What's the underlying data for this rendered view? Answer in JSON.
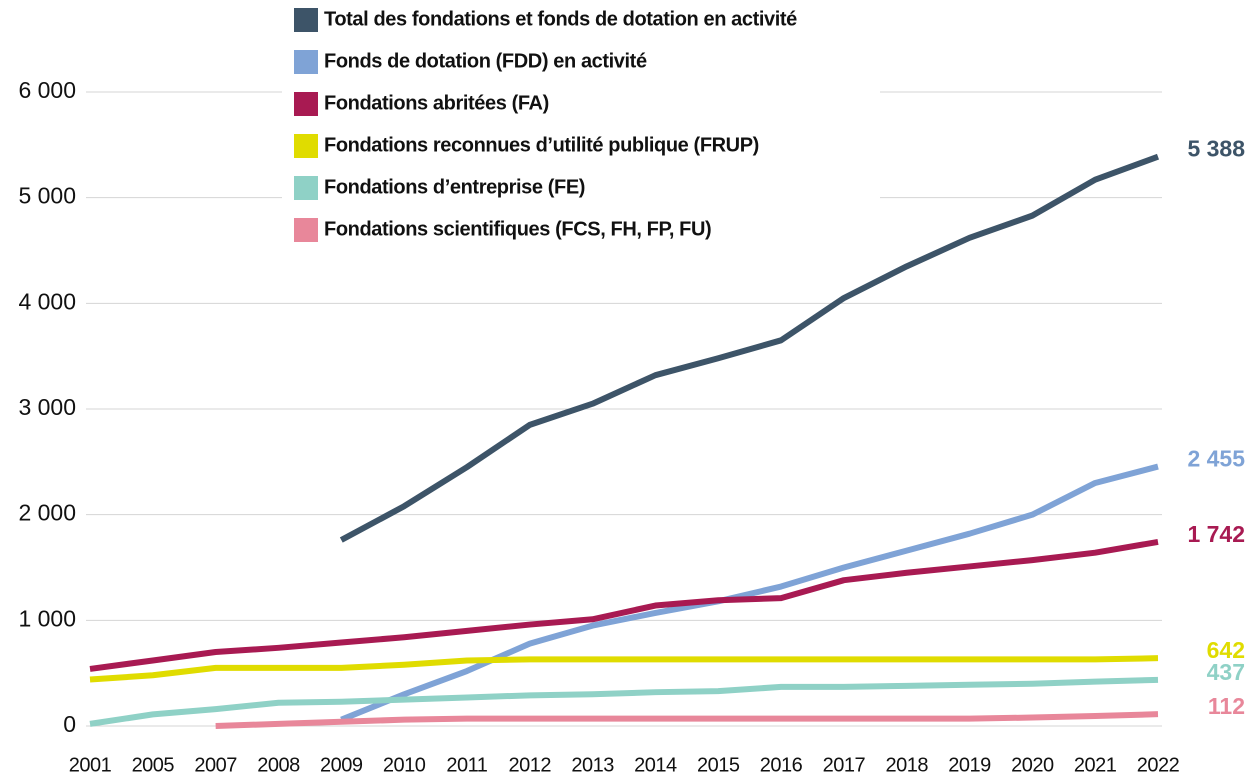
{
  "chart_data": {
    "type": "line",
    "categories": [
      "2001",
      "2005",
      "2007",
      "2008",
      "2009",
      "2010",
      "2011",
      "2012",
      "2013",
      "2014",
      "2015",
      "2016",
      "2017",
      "2018",
      "2019",
      "2020",
      "2021",
      "2022"
    ],
    "ylim": [
      0,
      6000
    ],
    "yticks": [
      0,
      {
        "value": 1000,
        "label": "1 000"
      },
      {
        "value": 2000,
        "label": "2 000"
      },
      {
        "value": 3000,
        "label": "3 000"
      },
      {
        "value": 4000,
        "label": "4 000"
      },
      {
        "value": 5000,
        "label": "5 000"
      },
      {
        "value": 6000,
        "label": "6 000"
      }
    ],
    "grid": true,
    "legend": "upper center",
    "series": [
      {
        "name": "Total des fondations et fonds de dotation en activité",
        "color": "#3d5468",
        "values": [
          null,
          null,
          null,
          null,
          1760,
          2080,
          2450,
          2850,
          3050,
          3320,
          3480,
          3650,
          4050,
          4350,
          4620,
          4830,
          5170,
          5388
        ],
        "value_labels": [
          null,
          null,
          null,
          null,
          null,
          null,
          null,
          null,
          null,
          null,
          null,
          null,
          null,
          null,
          null,
          null,
          null,
          "5 388"
        ]
      },
      {
        "name": "Fonds de dotation (FDD) en activité",
        "color": "#7fa3d6",
        "values": [
          null,
          null,
          null,
          null,
          60,
          300,
          520,
          780,
          950,
          1070,
          1180,
          1320,
          1500,
          1660,
          1820,
          2000,
          2300,
          2455
        ],
        "value_labels": [
          null,
          null,
          null,
          null,
          null,
          null,
          null,
          null,
          null,
          null,
          null,
          null,
          null,
          null,
          null,
          null,
          null,
          "2 455"
        ]
      },
      {
        "name": "Fondations abritées (FA)",
        "color": "#a81a52",
        "values": [
          540,
          620,
          700,
          740,
          790,
          840,
          900,
          960,
          1010,
          1140,
          1190,
          1210,
          1380,
          1450,
          1510,
          1570,
          1640,
          1742
        ],
        "value_labels": [
          null,
          null,
          null,
          null,
          null,
          null,
          null,
          null,
          null,
          null,
          null,
          null,
          null,
          null,
          null,
          null,
          null,
          "1 742"
        ]
      },
      {
        "name": "Fondations reconnues d’utilité publique (FRUP)",
        "color": "#e0dc00",
        "values": [
          440,
          480,
          550,
          550,
          550,
          580,
          620,
          630,
          630,
          630,
          630,
          630,
          630,
          630,
          630,
          630,
          630,
          642
        ]
      },
      {
        "name": "Fondations d’entreprise (FE)",
        "color": "#8fd1c6",
        "values": [
          20,
          110,
          160,
          220,
          230,
          250,
          270,
          290,
          300,
          320,
          330,
          370,
          370,
          380,
          390,
          400,
          420,
          437
        ]
      },
      {
        "name": "Fondations scientifiques (FCS, FH, FP, FU)",
        "color": "#e8879a",
        "values": [
          null,
          null,
          0,
          20,
          40,
          60,
          70,
          70,
          70,
          70,
          70,
          70,
          70,
          70,
          70,
          80,
          95,
          112
        ]
      }
    ]
  }
}
